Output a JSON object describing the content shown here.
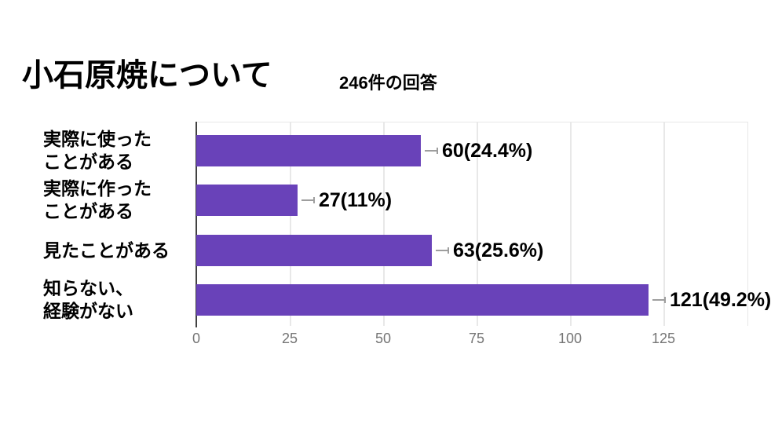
{
  "header": {
    "title": "小石原焼について",
    "subtitle": "246件の回答"
  },
  "chart_data": {
    "type": "bar",
    "orientation": "horizontal",
    "title": "小石原焼について",
    "subtitle": "246件の回答",
    "total_responses": "246",
    "categories": [
      "実際に使ったことがある",
      "実際に作ったことがある",
      "見たことがある",
      "知らない、経験がない"
    ],
    "category_lines": [
      [
        "実際に使った",
        "ことがある"
      ],
      [
        "実際に作った",
        "ことがある"
      ],
      [
        "見たことがある"
      ],
      [
        "知らない、",
        "経験がない"
      ]
    ],
    "values": [
      60,
      27,
      63,
      121
    ],
    "percentages": [
      24.4,
      11,
      25.6,
      49.2
    ],
    "value_labels": [
      "60(24.4%)",
      "27(11%)",
      "63(25.6%)",
      "121(49.2%)"
    ],
    "x_ticks": [
      0,
      25,
      50,
      75,
      100,
      125
    ],
    "xlim": [
      0,
      147.5
    ],
    "grid": true,
    "legend": "none",
    "colors": {
      "bar": "#6942b9",
      "axis_line": "#424242",
      "gridline": "#e8e8e8",
      "tick_label": "#757575",
      "leader_line": "#9e9e9e",
      "text": "#000000",
      "background": "#ffffff"
    }
  }
}
